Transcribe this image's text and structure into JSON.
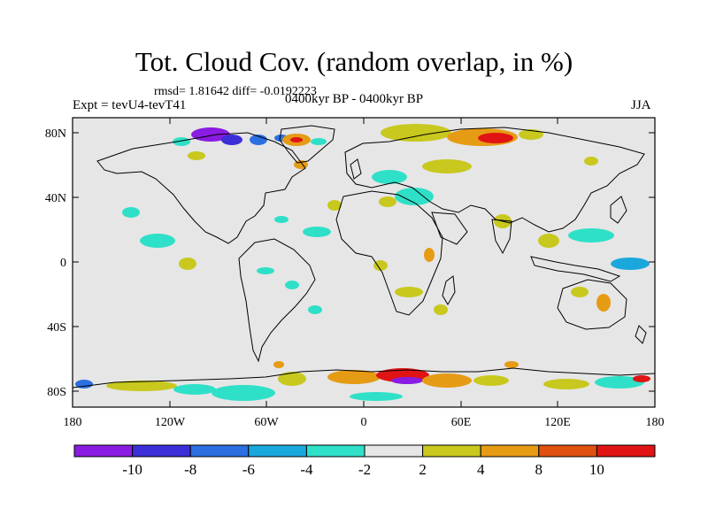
{
  "header": {
    "title": "Tot. Cloud Cov. (random overlap, in %)",
    "stats": "rmsd= 1.81642 diff= -0.0192223",
    "expt": "Expt = tevU4-tevT41",
    "period": "0400kyr BP - 0400kyr BP",
    "season": "JJA"
  },
  "map": {
    "lat_ticks": [
      "80N",
      "40N",
      "0",
      "40S",
      "80S"
    ],
    "lon_ticks": [
      "180",
      "120W",
      "60W",
      "0",
      "60E",
      "120E",
      "180"
    ],
    "background_color": "#e6e6e6"
  },
  "colorbar": {
    "labels": [
      "-10",
      "-8",
      "-6",
      "-4",
      "-2",
      "2",
      "4",
      "8",
      "10"
    ],
    "colors": [
      "#8a1be0",
      "#3c2fd8",
      "#2c6fe0",
      "#1aa8dc",
      "#2fe0c8",
      "#e6e6e6",
      "#c8c81e",
      "#e69b14",
      "#e0500f",
      "#e01414"
    ]
  }
}
